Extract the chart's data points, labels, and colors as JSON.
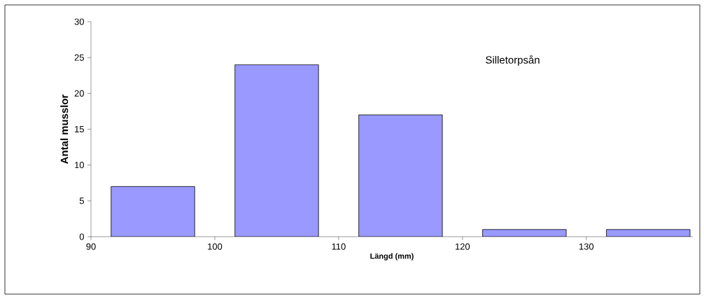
{
  "chart_data": {
    "type": "bar",
    "xlabel": "Längd (mm)",
    "ylabel": "Antal musslor",
    "annotations": [
      "Silletorpsån"
    ],
    "x": [
      95,
      105,
      115,
      125,
      135
    ],
    "values": [
      7,
      24,
      17,
      1,
      1
    ],
    "color": "#9999ff",
    "xlim": [
      90,
      138.6
    ],
    "xticks": [
      90,
      100,
      110,
      120,
      130
    ],
    "ylim": [
      0,
      30
    ],
    "yticks": [
      0,
      5,
      10,
      15,
      20,
      25,
      30
    ]
  }
}
